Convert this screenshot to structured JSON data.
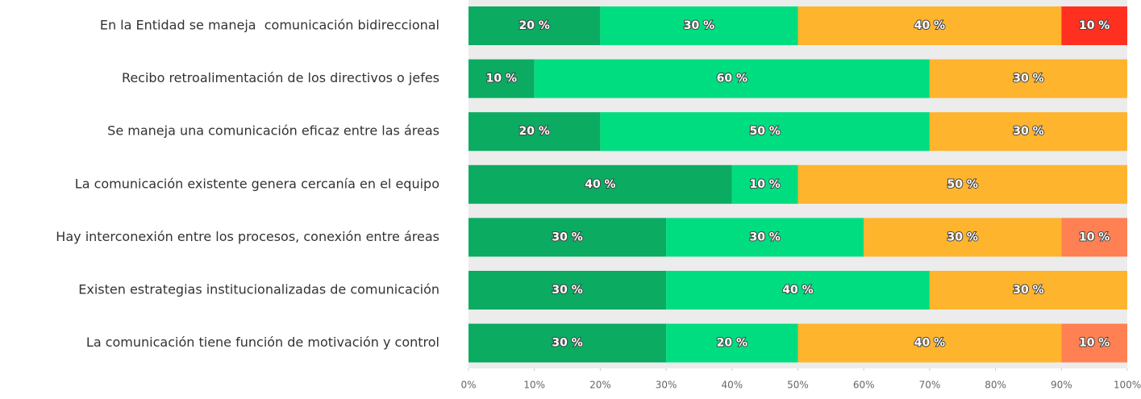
{
  "chart_data": {
    "type": "stacked-bar-horizontal",
    "categories": [
      "En la Entidad se maneja  comunicación bidireccional",
      "Recibo retroalimentación de los directivos o jefes",
      "Se maneja una comunicación eficaz entre las áreas",
      "La comunicación existente genera cercanía en el equipo",
      "Hay interconexión entre los procesos, conexión entre áreas",
      "Existen estrategias institucionalizadas de comunicación",
      "La comunicación tiene función de motivación y control"
    ],
    "series": [
      {
        "color": "#0bab62",
        "values": [
          20,
          10,
          20,
          40,
          30,
          30,
          30
        ],
        "value_labels": [
          "20 %",
          "10 %",
          "20 %",
          "40 %",
          "30 %",
          "30 %",
          "30 %"
        ]
      },
      {
        "color": "#00dd80",
        "values": [
          30,
          60,
          50,
          10,
          30,
          40,
          20
        ],
        "value_labels": [
          "30 %",
          "60 %",
          "50 %",
          "10 %",
          "30 %",
          "40 %",
          "20 %"
        ]
      },
      {
        "color": "#ffb42e",
        "values": [
          40,
          30,
          30,
          50,
          30,
          30,
          40
        ],
        "value_labels": [
          "40 %",
          "30 %",
          "30 %",
          "50 %",
          "30 %",
          "30 %",
          "40 %"
        ]
      },
      {
        "color": "#ff8052",
        "colors": [
          "#ff3020",
          null,
          null,
          null,
          "#ff8052",
          null,
          "#ff8052"
        ],
        "values": [
          10,
          null,
          null,
          null,
          10,
          null,
          10
        ],
        "value_labels": [
          "10 %",
          null,
          null,
          null,
          "10 %",
          null,
          "10 %"
        ]
      }
    ],
    "xlim": [
      0,
      100
    ],
    "xticks": [
      {
        "value": 0,
        "label": "0%"
      },
      {
        "value": 10,
        "label": "10%"
      },
      {
        "value": 20,
        "label": "20%"
      },
      {
        "value": 30,
        "label": "30%"
      },
      {
        "value": 40,
        "label": "40%"
      },
      {
        "value": 50,
        "label": "50%"
      },
      {
        "value": 60,
        "label": "60%"
      },
      {
        "value": 70,
        "label": "70%"
      },
      {
        "value": 80,
        "label": "80%"
      },
      {
        "value": 90,
        "label": "90%"
      },
      {
        "value": 100,
        "label": "100%"
      }
    ]
  }
}
